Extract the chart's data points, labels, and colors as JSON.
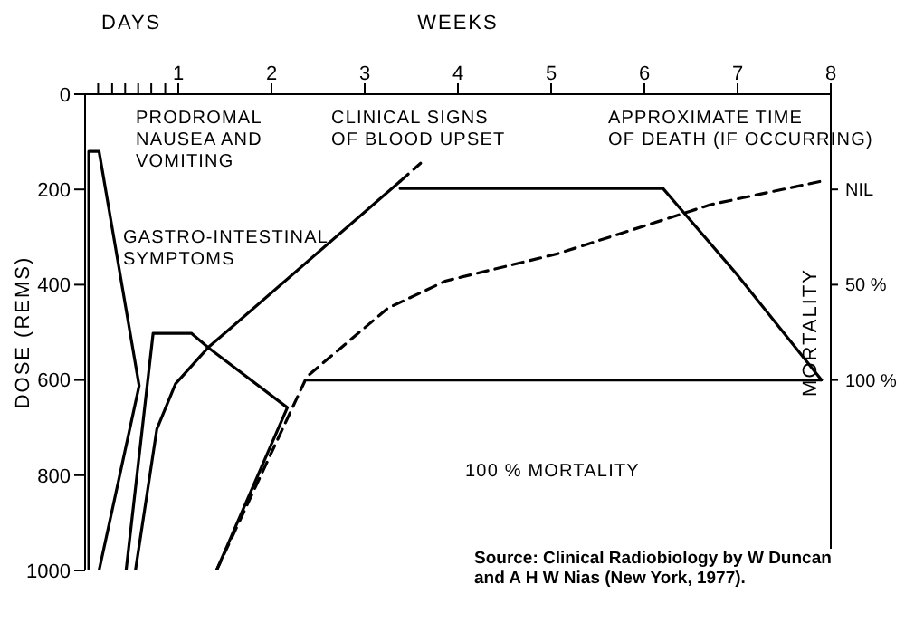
{
  "chart_data": {
    "type": "line",
    "xlabel": "WEEKS",
    "ylabel": "DOSE (REMS)",
    "y2label": "MORTALITY",
    "xlim": [
      0,
      8
    ],
    "xticks": [
      {
        "value": 0.14,
        "label": null
      },
      {
        "value": 0.29,
        "label": null
      },
      {
        "value": 0.43,
        "label": null
      },
      {
        "value": 0.57,
        "label": null
      },
      {
        "value": 0.71,
        "label": null
      },
      {
        "value": 0.86,
        "label": null
      },
      1,
      2,
      3,
      4,
      5,
      6,
      7,
      8
    ],
    "ylim": [
      1000,
      0
    ],
    "yticks": [
      0,
      200,
      400,
      600,
      800,
      1000
    ],
    "y2lim": [
      200,
      -50
    ],
    "y2ticks": [
      {
        "value": 0,
        "label": "NIL"
      },
      {
        "value": 50,
        "label": "50 %"
      },
      {
        "value": 100,
        "label": "100 %"
      }
    ],
    "marker": "none",
    "series": [
      {
        "color": "#000000",
        "line_style": "solid",
        "x": [
          0.04,
          0.04,
          0.15,
          0.58,
          0.15
        ],
        "values": [
          1000,
          120,
          120,
          612,
          1000
        ]
      },
      {
        "color": "#000000",
        "line_style": "solid",
        "x": [
          0.44,
          0.73,
          1.14,
          1.32,
          0.97,
          0.77,
          0.54
        ],
        "values": [
          1000,
          502,
          502,
          532,
          608,
          703,
          1000
        ]
      },
      {
        "color": "#000000",
        "line_style": "solid",
        "x": [
          3.38,
          1.32,
          2.17,
          1.41
        ],
        "values": [
          183,
          532,
          658,
          1000
        ]
      },
      {
        "color": "#000000",
        "line_style": "solid",
        "x": [
          2.38,
          7.9
        ],
        "values": [
          600,
          600
        ]
      },
      {
        "color": "#000000",
        "line_style": "dashed",
        "x": [
          3.38,
          3.6
        ],
        "values": [
          183,
          145
        ]
      },
      {
        "color": "#000000",
        "line_style": "solid",
        "x": [
          3.38,
          6.2,
          7.0,
          7.9
        ],
        "values": [
          198,
          198,
          380,
          600
        ]
      },
      {
        "color": "#000000",
        "line_style": "dashed",
        "x": [
          1.41,
          2.38,
          3.25,
          3.87,
          5.07,
          6.71,
          7.89
        ],
        "values": [
          1000,
          593,
          449,
          392,
          335,
          232,
          183
        ]
      }
    ],
    "annotations": [
      "DAYS",
      "Source: Clinical Radiobiology by W Duncan and A H W Nias (New York, 1977).",
      "PRODROMAL\nNAUSEA AND\nVOMITING",
      "GASTRO-INTESTINAL\nSYMPTOMS",
      "CLINICAL SIGNS\nOF BLOOD UPSET",
      "APPROXIMATE TIME\nOF DEATH (IF OCCURRING)",
      "100 % MORTALITY"
    ]
  }
}
